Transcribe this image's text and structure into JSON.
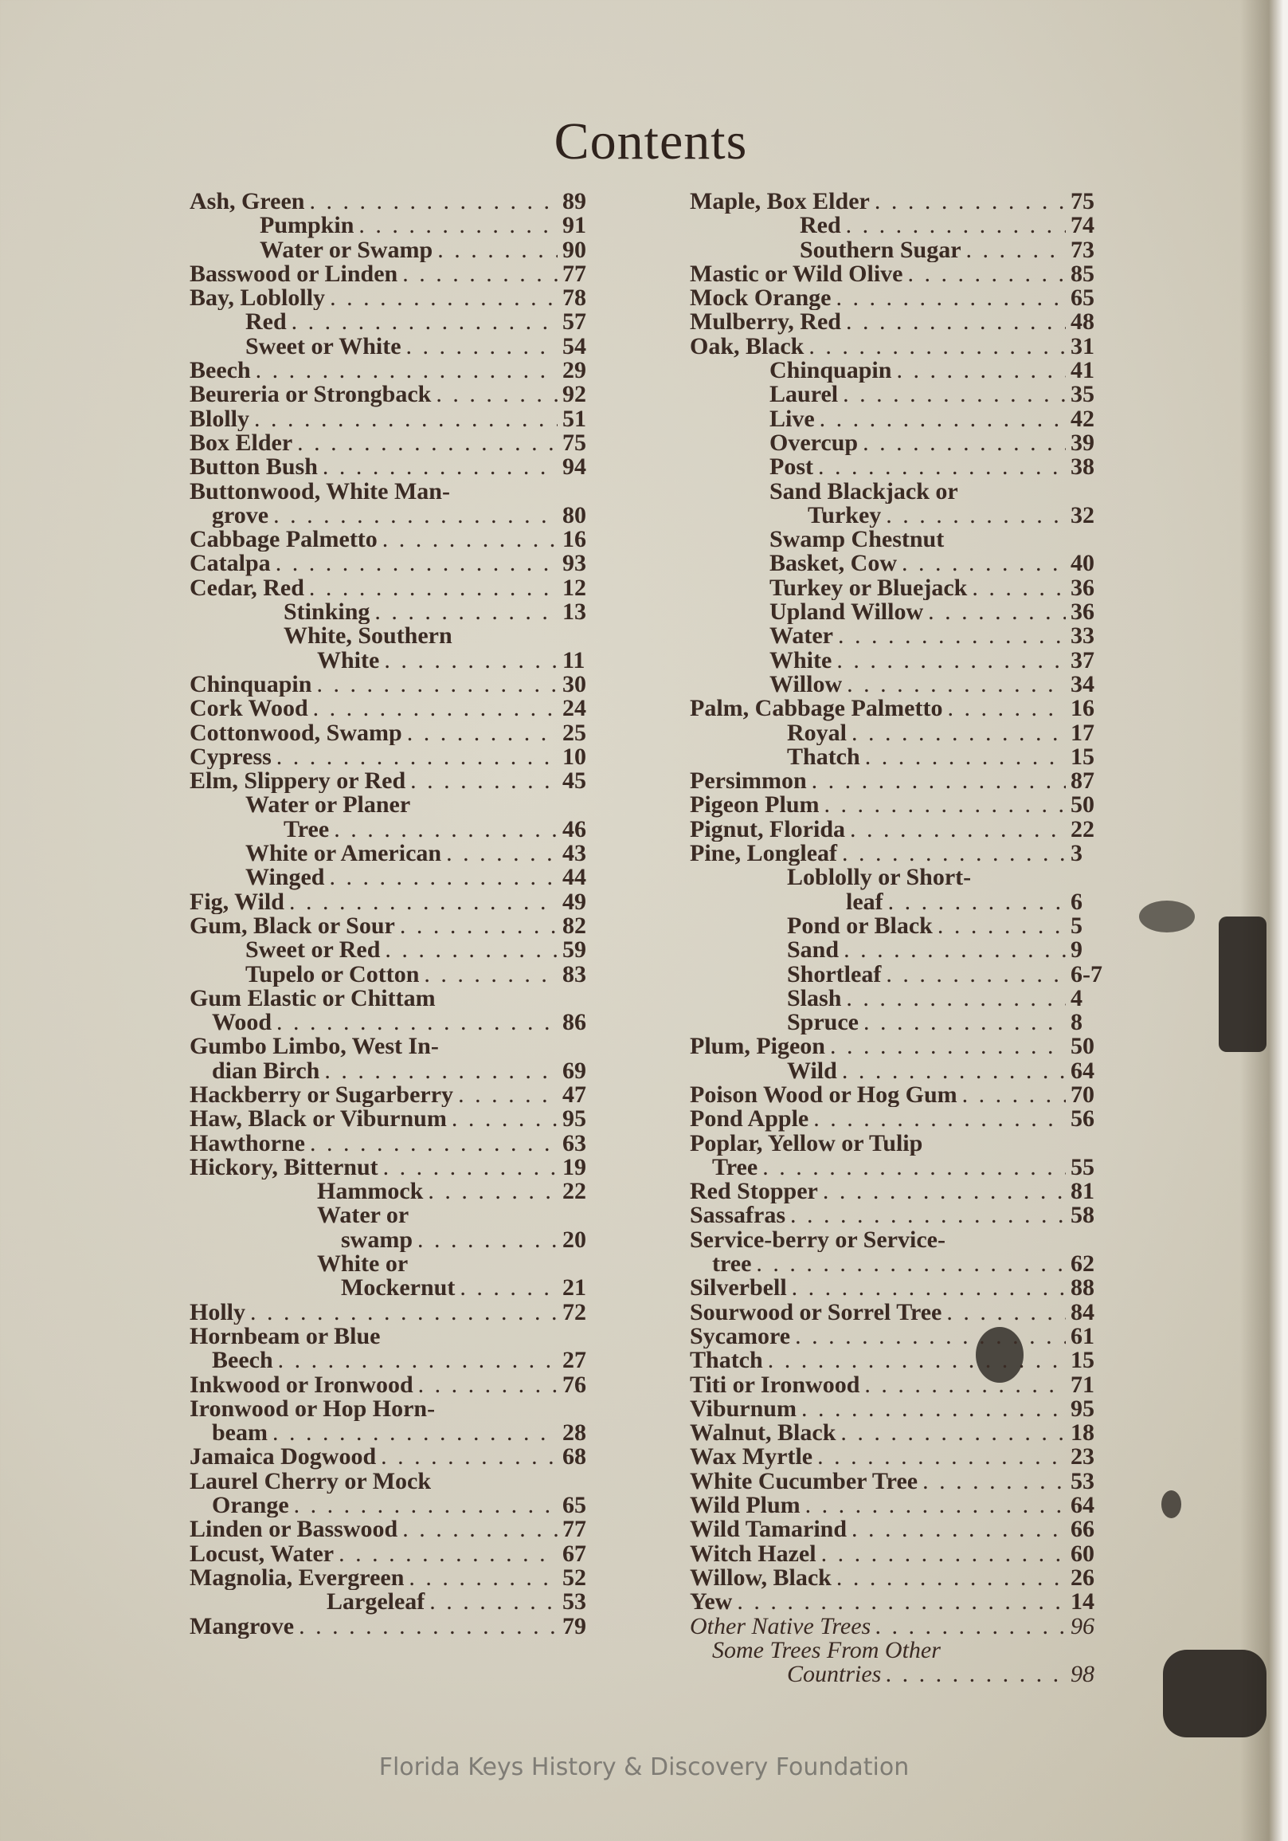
{
  "title": "Contents",
  "watermark": "Florida Keys History & Discovery Foundation",
  "left": [
    {
      "t": "Ash, Green",
      "p": "89",
      "l": 0
    },
    {
      "t": "Pumpkin",
      "p": "91",
      "l": 2
    },
    {
      "t": "Water or Swamp",
      "p": "90",
      "l": 2
    },
    {
      "t": "Basswood or Linden",
      "p": "77",
      "l": 0
    },
    {
      "t": "Bay, Loblolly",
      "p": "78",
      "l": 0
    },
    {
      "t": "Red",
      "p": "57",
      "l": 3
    },
    {
      "t": "Sweet or White",
      "p": "54",
      "l": 3
    },
    {
      "t": "Beech",
      "p": "29",
      "l": 0
    },
    {
      "t": "Beureria or Strongback",
      "p": "92",
      "l": 0
    },
    {
      "t": "Blolly",
      "p": "51",
      "l": 0
    },
    {
      "t": "Box Elder",
      "p": "75",
      "l": 0
    },
    {
      "t": "Button Bush",
      "p": "94",
      "l": 0
    },
    {
      "t": "Buttonwood, White Man-",
      "p": "",
      "l": 0
    },
    {
      "t": "grove",
      "p": "80",
      "l": 1
    },
    {
      "t": "Cabbage Palmetto",
      "p": "16",
      "l": 0
    },
    {
      "t": "Catalpa",
      "p": "93",
      "l": 0
    },
    {
      "t": "Cedar, Red",
      "p": "12",
      "l": 0
    },
    {
      "t": "Stinking",
      "p": "13",
      "l": 4
    },
    {
      "t": "White,  Southern",
      "p": "",
      "l": 4
    },
    {
      "t": "White",
      "p": "11",
      "l": 5
    },
    {
      "t": "Chinquapin",
      "p": "30",
      "l": 0
    },
    {
      "t": "Cork Wood",
      "p": "24",
      "l": 0
    },
    {
      "t": "Cottonwood, Swamp",
      "p": "25",
      "l": 0
    },
    {
      "t": "Cypress",
      "p": "10",
      "l": 0
    },
    {
      "t": "Elm, Slippery or Red",
      "p": "45",
      "l": 0
    },
    {
      "t": "Water or Planer",
      "p": "",
      "l": 3
    },
    {
      "t": "Tree",
      "p": "46",
      "l": 4
    },
    {
      "t": "White or American",
      "p": "43",
      "l": 3
    },
    {
      "t": "Winged",
      "p": "44",
      "l": 3
    },
    {
      "t": "Fig, Wild",
      "p": "49",
      "l": 0
    },
    {
      "t": "Gum, Black or Sour",
      "p": "82",
      "l": 0
    },
    {
      "t": "Sweet or Red",
      "p": "59",
      "l": 3
    },
    {
      "t": "Tupelo or Cotton",
      "p": "83",
      "l": 3
    },
    {
      "t": "Gum Elastic or Chittam",
      "p": "",
      "l": 0
    },
    {
      "t": "Wood",
      "p": "86",
      "l": 1
    },
    {
      "t": "Gumbo Limbo, West In-",
      "p": "",
      "l": 0
    },
    {
      "t": "dian Birch",
      "p": "69",
      "l": 1
    },
    {
      "t": "Hackberry or Sugarberry",
      "p": "47",
      "l": 0
    },
    {
      "t": "Haw, Black or Viburnum",
      "p": "95",
      "l": 0
    },
    {
      "t": "Hawthorne",
      "p": "63",
      "l": 0
    },
    {
      "t": "Hickory, Bitternut",
      "p": "19",
      "l": 0
    },
    {
      "t": "Hammock",
      "p": "22",
      "l": 5
    },
    {
      "t": "Water or",
      "p": "",
      "l": 5
    },
    {
      "t": "swamp",
      "p": "20",
      "l": 6
    },
    {
      "t": "White or",
      "p": "",
      "l": 5
    },
    {
      "t": "Mockernut",
      "p": "21",
      "l": 6
    },
    {
      "t": "Holly",
      "p": "72",
      "l": 0
    },
    {
      "t": "Hornbeam or Blue",
      "p": "",
      "l": 0
    },
    {
      "t": "Beech",
      "p": "27",
      "l": 1
    },
    {
      "t": "Inkwood or Ironwood",
      "p": "76",
      "l": 0
    },
    {
      "t": "Ironwood or Hop Horn-",
      "p": "",
      "l": 0
    },
    {
      "t": "beam",
      "p": "28",
      "l": 1
    },
    {
      "t": "Jamaica Dogwood",
      "p": "68",
      "l": 0
    },
    {
      "t": "Laurel Cherry or Mock",
      "p": "",
      "l": 0
    },
    {
      "t": "Orange",
      "p": "65",
      "l": 1
    },
    {
      "t": "Linden or Basswood",
      "p": "77",
      "l": 0
    },
    {
      "t": "Locust, Water",
      "p": "67",
      "l": 0
    },
    {
      "t": "Magnolia, Evergreen",
      "p": "52",
      "l": 0
    },
    {
      "t": "Largeleaf",
      "p": "53",
      "l": 7
    },
    {
      "t": "Mangrove",
      "p": "79",
      "l": 0
    }
  ],
  "right": [
    {
      "t": "Maple, Box Elder",
      "p": "75",
      "l": 0
    },
    {
      "t": "Red",
      "p": "74",
      "l": 4
    },
    {
      "t": "Southern Sugar",
      "p": "73",
      "l": 4
    },
    {
      "t": "Mastic or Wild Olive",
      "p": "85",
      "l": 0
    },
    {
      "t": "Mock Orange",
      "p": "65",
      "l": 0
    },
    {
      "t": "Mulberry, Red",
      "p": "48",
      "l": 0
    },
    {
      "t": "Oak, Black",
      "p": "31",
      "l": 0
    },
    {
      "t": "Chinquapin",
      "p": "41",
      "l": 2
    },
    {
      "t": "Laurel",
      "p": "35",
      "l": 2
    },
    {
      "t": "Live",
      "p": "42",
      "l": 2
    },
    {
      "t": "Overcup",
      "p": "39",
      "l": 2
    },
    {
      "t": "Post",
      "p": "38",
      "l": 2
    },
    {
      "t": "Sand Blackjack or",
      "p": "",
      "l": 2
    },
    {
      "t": "Turkey",
      "p": "32",
      "l": 5
    },
    {
      "t": "Swamp Chestnut",
      "p": "",
      "l": 2
    },
    {
      "t": "Basket, Cow",
      "p": "40",
      "l": 2
    },
    {
      "t": "Turkey or Bluejack",
      "p": "36",
      "l": 2
    },
    {
      "t": "Upland Willow",
      "p": "36",
      "l": 2
    },
    {
      "t": "Water",
      "p": "33",
      "l": 2
    },
    {
      "t": "White",
      "p": "37",
      "l": 2
    },
    {
      "t": "Willow",
      "p": "34",
      "l": 2
    },
    {
      "t": "Palm, Cabbage Palmetto",
      "p": "16",
      "l": 0
    },
    {
      "t": "Royal",
      "p": "17",
      "l": 3
    },
    {
      "t": "Thatch",
      "p": "15",
      "l": 3
    },
    {
      "t": "Persimmon",
      "p": "87",
      "l": 0
    },
    {
      "t": "Pigeon Plum",
      "p": "50",
      "l": 0
    },
    {
      "t": "Pignut, Florida",
      "p": "22",
      "l": 0
    },
    {
      "t": "Pine, Longleaf",
      "p": "3",
      "l": 0
    },
    {
      "t": "Loblolly or Short-",
      "p": "",
      "l": 3
    },
    {
      "t": "leaf",
      "p": "6",
      "l": 6
    },
    {
      "t": "Pond or Black",
      "p": "5",
      "l": 3
    },
    {
      "t": "Sand",
      "p": "9",
      "l": 3
    },
    {
      "t": "Shortleaf",
      "p": "6-7",
      "l": 3
    },
    {
      "t": "Slash",
      "p": "4",
      "l": 3
    },
    {
      "t": "Spruce",
      "p": "8",
      "l": 3
    },
    {
      "t": "Plum, Pigeon",
      "p": "50",
      "l": 0
    },
    {
      "t": "Wild",
      "p": "64",
      "l": 3
    },
    {
      "t": "Poison Wood or Hog Gum",
      "p": "70",
      "l": 0
    },
    {
      "t": "Pond Apple",
      "p": "56",
      "l": 0
    },
    {
      "t": "Poplar, Yellow or Tulip",
      "p": "",
      "l": 0
    },
    {
      "t": "Tree",
      "p": "55",
      "l": 1
    },
    {
      "t": "Red Stopper",
      "p": "81",
      "l": 0
    },
    {
      "t": "Sassafras",
      "p": "58",
      "l": 0
    },
    {
      "t": "Service-berry or Service-",
      "p": "",
      "l": 0
    },
    {
      "t": "tree",
      "p": "62",
      "l": 1
    },
    {
      "t": "Silverbell",
      "p": "88",
      "l": 0
    },
    {
      "t": "Sourwood or Sorrel Tree",
      "p": "84",
      "l": 0
    },
    {
      "t": "Sycamore",
      "p": "61",
      "l": 0
    },
    {
      "t": "Thatch",
      "p": "15",
      "l": 0
    },
    {
      "t": "Titi or Ironwood",
      "p": "71",
      "l": 0
    },
    {
      "t": "Viburnum",
      "p": "95",
      "l": 0
    },
    {
      "t": "Walnut, Black",
      "p": "18",
      "l": 0
    },
    {
      "t": "Wax Myrtle",
      "p": "23",
      "l": 0
    },
    {
      "t": "White Cucumber Tree",
      "p": "53",
      "l": 0
    },
    {
      "t": "Wild Plum",
      "p": "64",
      "l": 0
    },
    {
      "t": "Wild Tamarind",
      "p": "66",
      "l": 0
    },
    {
      "t": "Witch Hazel",
      "p": "60",
      "l": 0
    },
    {
      "t": "Willow, Black",
      "p": "26",
      "l": 0
    },
    {
      "t": "Yew",
      "p": "14",
      "l": 0
    },
    {
      "t": "Other Native Trees",
      "p": "96",
      "l": 0,
      "italic": true
    },
    {
      "t": "Some Trees From Other",
      "p": "",
      "l": 1,
      "italic": true
    },
    {
      "t": "Countries",
      "p": "98",
      "l": 3,
      "italic": true
    }
  ]
}
